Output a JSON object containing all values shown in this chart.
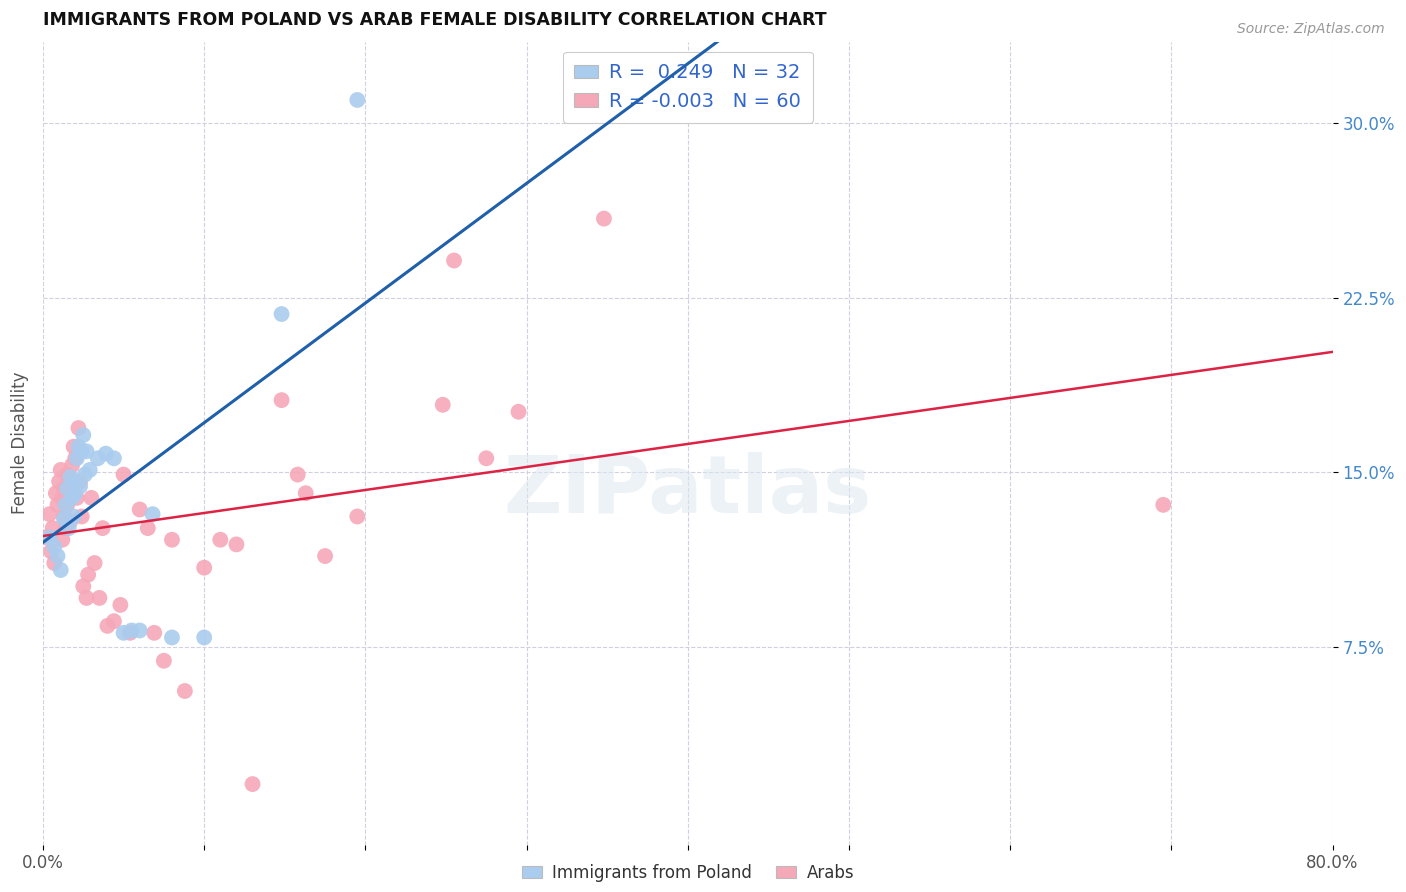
{
  "title": "IMMIGRANTS FROM POLAND VS ARAB FEMALE DISABILITY CORRELATION CHART",
  "source": "Source: ZipAtlas.com",
  "ylabel_label": "Female Disability",
  "ylabel_ticks": [
    "7.5%",
    "15.0%",
    "22.5%",
    "30.0%"
  ],
  "ytick_positions": [
    0.075,
    0.15,
    0.225,
    0.3
  ],
  "xlim": [
    0.0,
    0.8
  ],
  "ylim": [
    -0.01,
    0.335
  ],
  "poland_R": 0.249,
  "poland_N": 32,
  "arab_R": -0.003,
  "arab_N": 60,
  "poland_color": "#aaccee",
  "arab_color": "#f5a8b8",
  "poland_line_color": "#2060aa",
  "arab_line_color": "#dd2244",
  "dashed_line_color": "#aaccee",
  "background_color": "#ffffff",
  "grid_color": "#d0d0e0",
  "poland_scatter": [
    [
      0.004,
      0.122
    ],
    [
      0.007,
      0.118
    ],
    [
      0.009,
      0.114
    ],
    [
      0.011,
      0.108
    ],
    [
      0.013,
      0.13
    ],
    [
      0.014,
      0.136
    ],
    [
      0.015,
      0.143
    ],
    [
      0.016,
      0.126
    ],
    [
      0.017,
      0.148
    ],
    [
      0.018,
      0.139
    ],
    [
      0.019,
      0.131
    ],
    [
      0.02,
      0.146
    ],
    [
      0.02,
      0.141
    ],
    [
      0.021,
      0.156
    ],
    [
      0.022,
      0.161
    ],
    [
      0.023,
      0.144
    ],
    [
      0.024,
      0.159
    ],
    [
      0.025,
      0.166
    ],
    [
      0.026,
      0.149
    ],
    [
      0.027,
      0.159
    ],
    [
      0.029,
      0.151
    ],
    [
      0.034,
      0.156
    ],
    [
      0.039,
      0.158
    ],
    [
      0.044,
      0.156
    ],
    [
      0.05,
      0.081
    ],
    [
      0.055,
      0.082
    ],
    [
      0.06,
      0.082
    ],
    [
      0.068,
      0.132
    ],
    [
      0.08,
      0.079
    ],
    [
      0.1,
      0.079
    ],
    [
      0.148,
      0.218
    ],
    [
      0.195,
      0.31
    ]
  ],
  "arab_scatter": [
    [
      0.002,
      0.122
    ],
    [
      0.004,
      0.132
    ],
    [
      0.005,
      0.116
    ],
    [
      0.006,
      0.126
    ],
    [
      0.007,
      0.111
    ],
    [
      0.008,
      0.141
    ],
    [
      0.009,
      0.136
    ],
    [
      0.01,
      0.146
    ],
    [
      0.011,
      0.151
    ],
    [
      0.012,
      0.121
    ],
    [
      0.012,
      0.139
    ],
    [
      0.013,
      0.131
    ],
    [
      0.013,
      0.143
    ],
    [
      0.014,
      0.126
    ],
    [
      0.015,
      0.136
    ],
    [
      0.015,
      0.149
    ],
    [
      0.016,
      0.139
    ],
    [
      0.017,
      0.129
    ],
    [
      0.018,
      0.141
    ],
    [
      0.018,
      0.153
    ],
    [
      0.019,
      0.161
    ],
    [
      0.02,
      0.146
    ],
    [
      0.02,
      0.156
    ],
    [
      0.021,
      0.139
    ],
    [
      0.022,
      0.169
    ],
    [
      0.023,
      0.146
    ],
    [
      0.024,
      0.131
    ],
    [
      0.025,
      0.101
    ],
    [
      0.027,
      0.096
    ],
    [
      0.028,
      0.106
    ],
    [
      0.03,
      0.139
    ],
    [
      0.032,
      0.111
    ],
    [
      0.035,
      0.096
    ],
    [
      0.037,
      0.126
    ],
    [
      0.04,
      0.084
    ],
    [
      0.044,
      0.086
    ],
    [
      0.048,
      0.093
    ],
    [
      0.05,
      0.149
    ],
    [
      0.054,
      0.081
    ],
    [
      0.06,
      0.134
    ],
    [
      0.065,
      0.126
    ],
    [
      0.069,
      0.081
    ],
    [
      0.075,
      0.069
    ],
    [
      0.08,
      0.121
    ],
    [
      0.088,
      0.056
    ],
    [
      0.1,
      0.109
    ],
    [
      0.11,
      0.121
    ],
    [
      0.12,
      0.119
    ],
    [
      0.13,
      0.016
    ],
    [
      0.148,
      0.181
    ],
    [
      0.158,
      0.149
    ],
    [
      0.163,
      0.141
    ],
    [
      0.175,
      0.114
    ],
    [
      0.195,
      0.131
    ],
    [
      0.248,
      0.179
    ],
    [
      0.255,
      0.241
    ],
    [
      0.275,
      0.156
    ],
    [
      0.295,
      0.176
    ],
    [
      0.348,
      0.259
    ],
    [
      0.695,
      0.136
    ]
  ],
  "watermark_text": "ZIPatlas",
  "legend_label_poland": "Immigrants from Poland",
  "legend_label_arab": "Arabs"
}
